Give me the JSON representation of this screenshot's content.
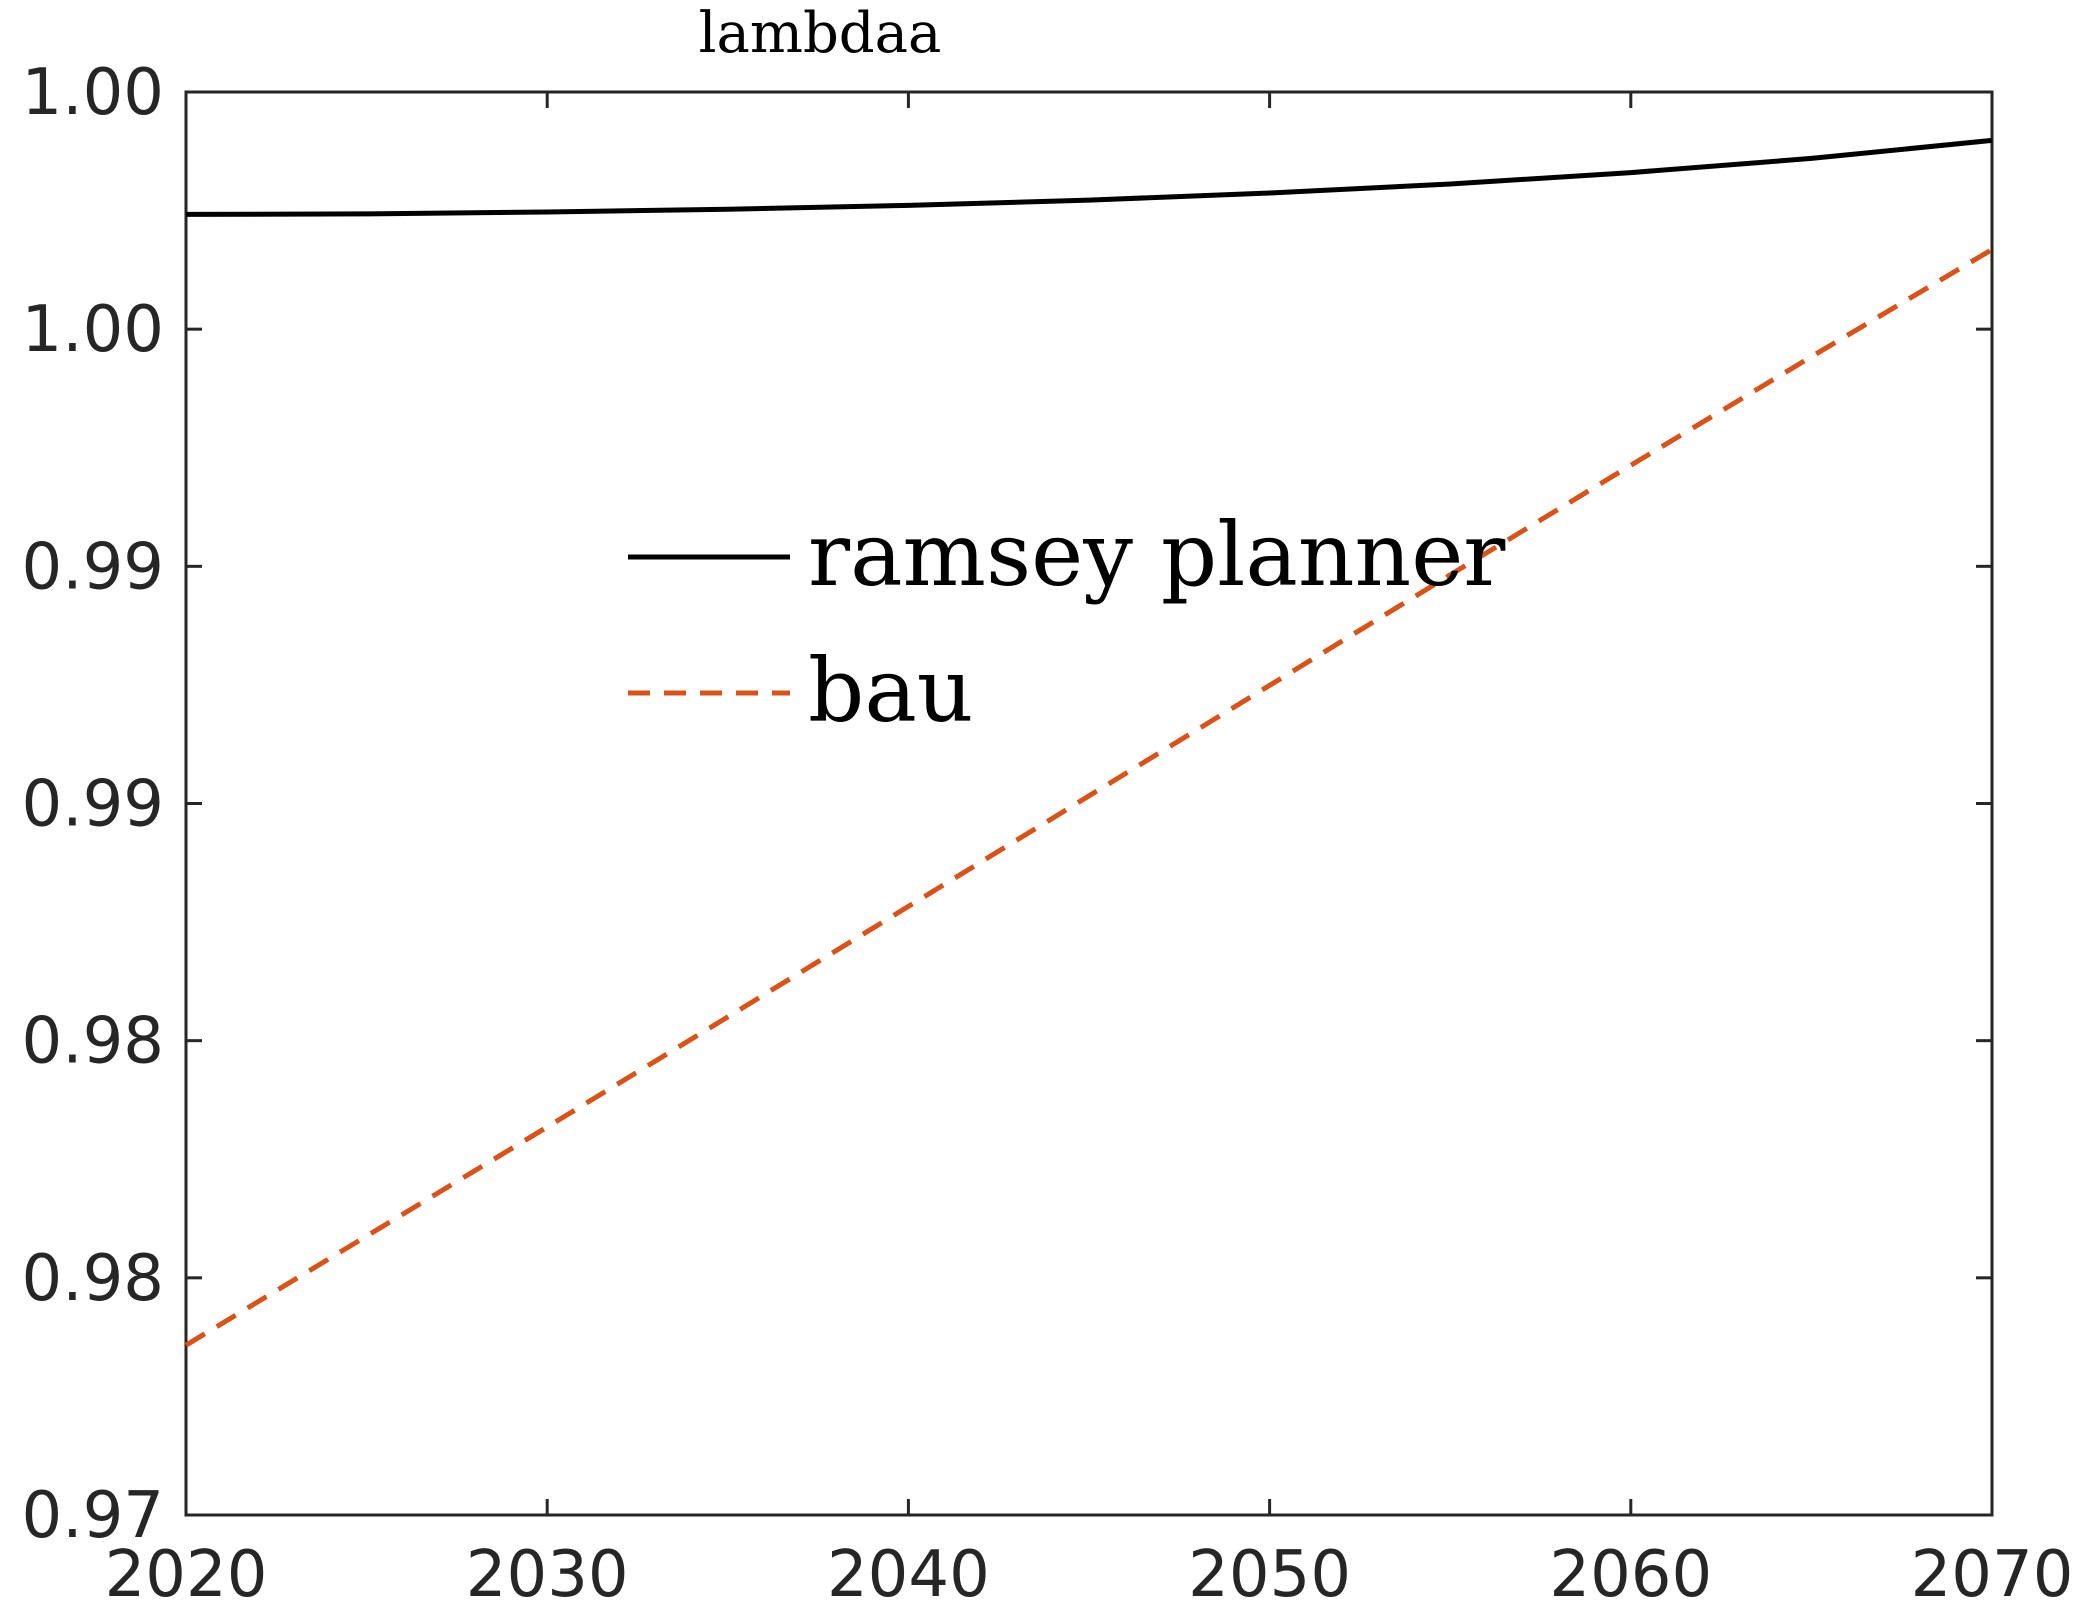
{
  "chart_data": {
    "type": "line",
    "title": "lambdaa",
    "xlabel": "",
    "ylabel": "",
    "xlim": [
      2020,
      2070
    ],
    "ylim": [
      0.97,
      1.0
    ],
    "x_ticks": [
      2020,
      2030,
      2040,
      2050,
      2060,
      2070
    ],
    "x_tick_labels": [
      "2020",
      "2030",
      "2040",
      "2050",
      "2060",
      "2070"
    ],
    "y_ticks": [
      0.97,
      0.975,
      0.98,
      0.985,
      0.99,
      0.995,
      1.0
    ],
    "y_tick_labels": [
      "0.97",
      "0.98",
      "0.98",
      "0.99",
      "0.99",
      "1.00",
      "1.00"
    ],
    "grid": false,
    "legend_position": "center",
    "series": [
      {
        "name": "ramsey planner",
        "color": "#000000",
        "style": "solid",
        "x": [
          2020,
          2025,
          2030,
          2035,
          2040,
          2045,
          2050,
          2055,
          2060,
          2065,
          2070
        ],
        "y": [
          0.99742,
          0.99743,
          0.99747,
          0.99753,
          0.99761,
          0.99772,
          0.99787,
          0.99806,
          0.9983,
          0.9986,
          0.99898
        ]
      },
      {
        "name": "bau",
        "color": "#D95319",
        "style": "dashed",
        "x": [
          2020,
          2025,
          2030,
          2035,
          2040,
          2045,
          2050,
          2055,
          2060,
          2065,
          2070
        ],
        "y": [
          0.97358,
          0.97588,
          0.97818,
          0.9805,
          0.98283,
          0.98516,
          0.98749,
          0.98982,
          0.99213,
          0.99442,
          0.99668
        ]
      }
    ]
  }
}
